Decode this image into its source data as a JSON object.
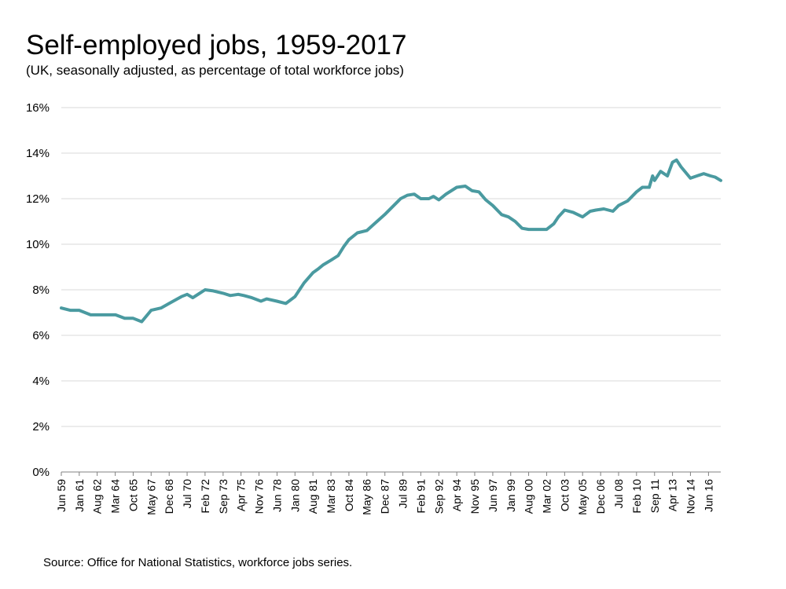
{
  "header": {
    "title": "Self-employed jobs, 1959-2017",
    "subtitle": "(UK, seasonally adjusted, as percentage of total workforce jobs)"
  },
  "footer": {
    "source": "Source: Office for National Statistics, workforce jobs series."
  },
  "colors": {
    "line": "#4a9aa0",
    "grid": "#d9d9d9",
    "axis": "#808080"
  },
  "chart_data": {
    "type": "line",
    "title": "Self-employed jobs, 1959-2017",
    "subtitle": "(UK, seasonally adjusted, as percentage of total workforce jobs)",
    "xlabel": "",
    "ylabel": "",
    "ylim": [
      0,
      16
    ],
    "y_ticks": [
      0,
      2,
      4,
      6,
      8,
      10,
      12,
      14,
      16
    ],
    "y_tick_labels": [
      "0%",
      "2%",
      "4%",
      "6%",
      "8%",
      "10%",
      "12%",
      "14%",
      "16%"
    ],
    "xlim": [
      1959.42,
      2017.5
    ],
    "x_ticks": [
      1959.42,
      1961.0,
      1962.58,
      1964.17,
      1965.75,
      1967.33,
      1968.92,
      1970.5,
      1972.08,
      1973.67,
      1975.25,
      1976.83,
      1978.42,
      1980.0,
      1981.58,
      1983.17,
      1984.75,
      1986.33,
      1987.92,
      1989.5,
      1991.08,
      1992.67,
      1994.25,
      1995.83,
      1997.42,
      1999.0,
      2000.58,
      2002.17,
      2003.75,
      2005.33,
      2006.92,
      2008.5,
      2010.08,
      2011.67,
      2013.25,
      2014.83,
      2016.42
    ],
    "x_tick_labels": [
      "Jun 59",
      "Jan 61",
      "Aug 62",
      "Mar 64",
      "Oct 65",
      "May 67",
      "Dec 68",
      "Jul 70",
      "Feb 72",
      "Sep 73",
      "Apr 75",
      "Nov 76",
      "Jun 78",
      "Jan 80",
      "Aug 81",
      "Mar 83",
      "Oct 84",
      "May 86",
      "Dec 87",
      "Jul 89",
      "Feb 91",
      "Sep 92",
      "Apr 94",
      "Nov 95",
      "Jun 97",
      "Jan 99",
      "Aug 00",
      "Mar 02",
      "Oct 03",
      "May 05",
      "Dec 06",
      "Jul 08",
      "Feb 10",
      "Sep 11",
      "Apr 13",
      "Nov 14",
      "Jun 16"
    ],
    "grid": true,
    "legend": "none",
    "series": [
      {
        "name": "Self-employed jobs (% of total workforce jobs)",
        "x": [
          1959.42,
          1960.2,
          1961.0,
          1962.0,
          1963.0,
          1964.2,
          1965.0,
          1965.75,
          1966.5,
          1967.33,
          1968.2,
          1968.92,
          1970.0,
          1970.5,
          1971.0,
          1972.08,
          1972.8,
          1973.67,
          1974.3,
          1975.0,
          1975.5,
          1976.2,
          1977.0,
          1977.5,
          1978.4,
          1979.2,
          1980.0,
          1980.8,
          1981.58,
          1982.0,
          1982.5,
          1983.17,
          1983.8,
          1984.3,
          1984.75,
          1985.5,
          1986.33,
          1987.0,
          1987.9,
          1988.5,
          1989.3,
          1989.9,
          1990.5,
          1991.08,
          1991.8,
          1992.2,
          1992.67,
          1993.3,
          1994.25,
          1995.0,
          1995.6,
          1996.2,
          1996.8,
          1997.42,
          1998.2,
          1998.8,
          1999.4,
          2000.0,
          2000.58,
          2001.0,
          2002.17,
          2002.8,
          2003.2,
          2003.75,
          2004.5,
          2005.33,
          2006.0,
          2006.5,
          2007.2,
          2008.0,
          2008.5,
          2009.3,
          2010.08,
          2010.6,
          2011.2,
          2011.5,
          2011.67,
          2012.2,
          2012.8,
          2013.25,
          2013.6,
          2014.0,
          2014.83,
          2015.4,
          2016.0,
          2016.6,
          2017.0,
          2017.5
        ],
        "values": [
          7.2,
          7.1,
          7.1,
          6.9,
          6.9,
          6.9,
          6.75,
          6.75,
          6.6,
          7.1,
          7.2,
          7.4,
          7.7,
          7.8,
          7.65,
          8.0,
          7.95,
          7.85,
          7.75,
          7.8,
          7.75,
          7.65,
          7.5,
          7.6,
          7.5,
          7.4,
          7.7,
          8.3,
          8.75,
          8.9,
          9.1,
          9.3,
          9.5,
          9.9,
          10.2,
          10.5,
          10.6,
          10.9,
          11.3,
          11.6,
          12.0,
          12.15,
          12.2,
          12.0,
          12.0,
          12.1,
          11.95,
          12.2,
          12.5,
          12.55,
          12.35,
          12.3,
          11.95,
          11.7,
          11.3,
          11.2,
          11.0,
          10.7,
          10.65,
          10.65,
          10.65,
          10.9,
          11.2,
          11.5,
          11.4,
          11.2,
          11.45,
          11.5,
          11.55,
          11.45,
          11.7,
          11.9,
          12.3,
          12.5,
          12.5,
          13.0,
          12.8,
          13.2,
          13.0,
          13.6,
          13.7,
          13.4,
          12.9,
          13.0,
          13.1,
          13.0,
          12.95,
          12.8
        ]
      }
    ]
  }
}
